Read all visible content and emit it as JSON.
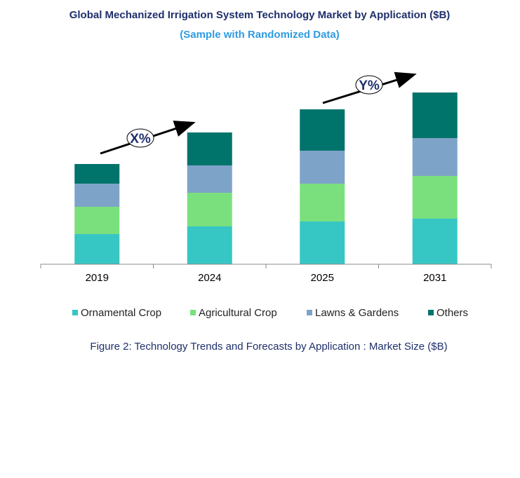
{
  "chart_data": {
    "type": "bar",
    "stacked": true,
    "title": "Global Mechanized Irrigation  System Technology Market by Application ($B)",
    "subtitle": "(Sample with Randomized Data)",
    "caption": "Figure 2: Technology  Trends  and Forecasts by Application : Market Size ($B)",
    "categories": [
      "2019",
      "2024",
      "2025",
      "2031"
    ],
    "series": [
      {
        "name": "Ornamental Crop",
        "color": "#36c6c4",
        "values": [
          4.3,
          5.4,
          6.1,
          6.5
        ]
      },
      {
        "name": "Agricultural Crop",
        "color": "#7ae07e",
        "values": [
          3.9,
          4.8,
          5.4,
          6.1
        ]
      },
      {
        "name": "Lawns & Gardens",
        "color": "#7ea3c8",
        "values": [
          3.3,
          3.9,
          4.7,
          5.4
        ]
      },
      {
        "name": "Others",
        "color": "#00736b",
        "values": [
          2.8,
          4.7,
          5.9,
          6.5
        ]
      }
    ],
    "annotations": [
      {
        "label": "X%",
        "from": "2019",
        "to": "2024"
      },
      {
        "label": "Y%",
        "from": "2025",
        "to": "2031"
      }
    ],
    "grid": false,
    "y_axis_shown": false,
    "legend_position": "bottom"
  }
}
